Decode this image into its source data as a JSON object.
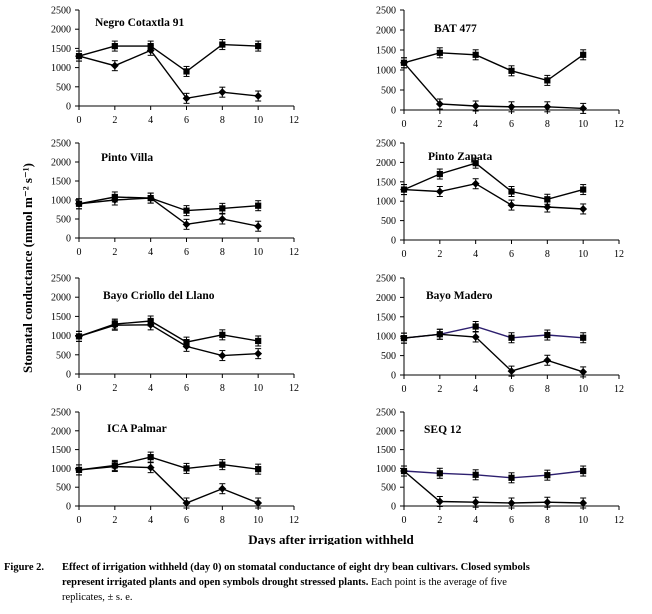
{
  "chart_data": {
    "type": "line",
    "shared_ylabel": "Stomatal conductance (mmol m⁻² s⁻¹)",
    "shared_xlabel": "Days after irrigation withheld",
    "xlim": [
      0,
      12
    ],
    "xticks": [
      "0",
      "2",
      "4",
      "6",
      "8",
      "10",
      "12"
    ],
    "ylim": [
      0,
      2500
    ],
    "yticks": [
      "0",
      "500",
      "1000",
      "1500",
      "2000",
      "2500"
    ],
    "x": [
      0,
      2,
      4,
      6,
      8,
      10
    ],
    "panels": [
      {
        "title": "Negro Cotaxtla 91",
        "series": [
          {
            "name": "irrigated",
            "values": [
              1300,
              1560,
              1560,
              900,
              1600,
              1560
            ]
          },
          {
            "name": "drought stressed",
            "values": [
              1300,
              1050,
              1450,
              200,
              360,
              260
            ]
          }
        ]
      },
      {
        "title": "BAT 477",
        "series": [
          {
            "name": "irrigated",
            "values": [
              1180,
              1430,
              1380,
              980,
              740,
              1380
            ]
          },
          {
            "name": "drought stressed",
            "values": [
              1180,
              150,
              100,
              80,
              80,
              40
            ]
          }
        ]
      },
      {
        "title": "Pinto Villa",
        "series": [
          {
            "name": "irrigated",
            "values": [
              900,
              1080,
              1050,
              720,
              780,
              850
            ]
          },
          {
            "name": "drought stressed",
            "values": [
              900,
              1000,
              1050,
              360,
              500,
              310
            ]
          }
        ]
      },
      {
        "title": "Pinto Zapata",
        "series": [
          {
            "name": "irrigated",
            "values": [
              1300,
              1700,
              1980,
              1250,
              1050,
              1300
            ]
          },
          {
            "name": "drought stressed",
            "values": [
              1300,
              1250,
              1450,
              900,
              850,
              800
            ]
          }
        ]
      },
      {
        "title": "Bayo Criollo del Llano",
        "series": [
          {
            "name": "irrigated",
            "values": [
              980,
              1300,
              1380,
              830,
              1020,
              860
            ]
          },
          {
            "name": "drought stressed",
            "values": [
              980,
              1270,
              1280,
              720,
              480,
              530
            ]
          }
        ]
      },
      {
        "title": "Bayo Madero",
        "series": [
          {
            "name": "irrigated",
            "values": [
              950,
              1050,
              1250,
              960,
              1030,
              960
            ]
          },
          {
            "name": "drought stressed",
            "values": [
              950,
              1050,
              980,
              100,
              380,
              80
            ]
          }
        ]
      },
      {
        "title": "ICA Palmar",
        "series": [
          {
            "name": "irrigated",
            "values": [
              960,
              1080,
              1300,
              1000,
              1100,
              980
            ]
          },
          {
            "name": "drought stressed",
            "values": [
              960,
              1050,
              1020,
              80,
              460,
              80
            ]
          }
        ]
      },
      {
        "title": "SEQ 12",
        "series": [
          {
            "name": "irrigated",
            "values": [
              930,
              870,
              830,
              750,
              820,
              930
            ]
          },
          {
            "name": "drought stressed",
            "values": [
              930,
              120,
              100,
              80,
              100,
              80
            ]
          }
        ]
      }
    ]
  },
  "colors": {
    "line": "#000000",
    "line_alt": "#2d1f6e",
    "marker": "#000000"
  },
  "caption": {
    "label": "Figure 2.",
    "line1": "Effect of irrigation withheld (day 0) on stomatal conductance of eight dry bean cultivars. Closed symbols",
    "line2_bold": "represent irrigated plants and open symbols drought stressed plants.",
    "line2_normal": " Each point is the average of five",
    "line3": "replicates, ± s. e."
  }
}
